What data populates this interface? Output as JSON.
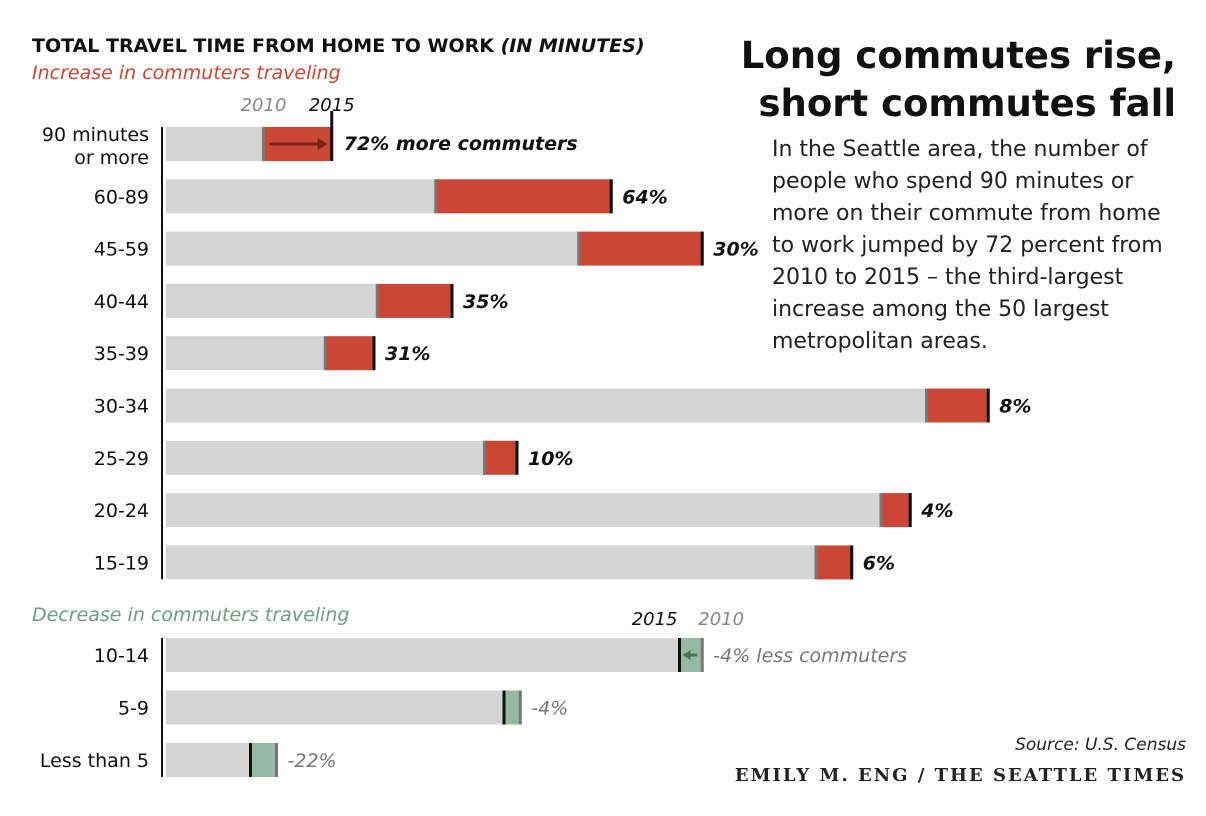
{
  "chart_data": {
    "type": "bar",
    "header": "TOTAL TRAVEL TIME FROM HOME TO WORK",
    "header_unit": "(IN MINUTES)",
    "title_lines": [
      "Long commutes rise,",
      "short commutes fall"
    ],
    "description_lines": [
      "In the Seattle area, the number of",
      "people who spend 90 minutes or",
      "more on their commute from home",
      "to work jumped by 72 percent from",
      "2010 to 2015 – the third-largest",
      "increase among the 50 largest",
      "metropolitan areas."
    ],
    "legend": {
      "start": "2010",
      "end": "2015"
    },
    "colors": {
      "bar_2010": "#d5d5d5",
      "increase": "#c94734",
      "decrease": "#97b8a3",
      "increase_text": "#c94734",
      "decrease_text": "#6f9c80",
      "arrow_increase": "#7a1f14",
      "arrow_decrease": "#3f7a56"
    },
    "increase": {
      "label": "Increase in commuters traveling",
      "annotation": "72% more commuters",
      "categories": [
        {
          "name": [
            "90 minutes",
            "or more"
          ],
          "v2010": 30,
          "v2015": 51,
          "label": "72%"
        },
        {
          "name": [
            "60-89"
          ],
          "v2010": 83,
          "v2015": 137,
          "label": "64%"
        },
        {
          "name": [
            "45-59"
          ],
          "v2010": 127,
          "v2015": 165,
          "label": "30%"
        },
        {
          "name": [
            "40-44"
          ],
          "v2010": 65,
          "v2015": 88,
          "label": "35%"
        },
        {
          "name": [
            "35-39"
          ],
          "v2010": 49,
          "v2015": 64,
          "label": "31%"
        },
        {
          "name": [
            "30-34"
          ],
          "v2010": 234,
          "v2015": 253,
          "label": "8%"
        },
        {
          "name": [
            "25-29"
          ],
          "v2010": 98,
          "v2015": 108,
          "label": "10%"
        },
        {
          "name": [
            "20-24"
          ],
          "v2010": 220,
          "v2015": 229,
          "label": "4%"
        },
        {
          "name": [
            "15-19"
          ],
          "v2010": 200,
          "v2015": 211,
          "label": "6%"
        }
      ]
    },
    "decrease": {
      "label": "Decrease in commuters traveling",
      "annotation": "-4% less commuters",
      "categories": [
        {
          "name": [
            "10-14"
          ],
          "v2010": 165,
          "v2015": 158,
          "label": "-4%"
        },
        {
          "name": [
            "5-9"
          ],
          "v2010": 109,
          "v2015": 104,
          "label": "-4%"
        },
        {
          "name": [
            "Less than 5"
          ],
          "v2010": 34,
          "v2015": 26,
          "label": "-22%"
        }
      ]
    },
    "source": "Source: U.S. Census",
    "credit": "EMILY M. ENG / THE SEATTLE TIMES"
  }
}
